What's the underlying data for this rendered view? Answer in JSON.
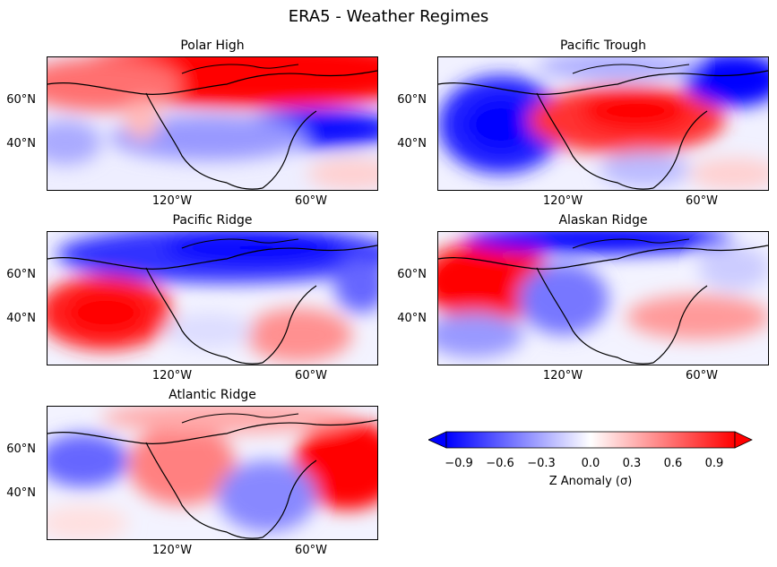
{
  "title": "ERA5 - Weather Regimes",
  "panels": [
    {
      "title": "Polar High",
      "pattern": "polar-high"
    },
    {
      "title": "Pacific Trough",
      "pattern": "pacific-trough"
    },
    {
      "title": "Pacific Ridge",
      "pattern": "pacific-ridge"
    },
    {
      "title": "Alaskan Ridge",
      "pattern": "alaskan-ridge"
    },
    {
      "title": "Atlantic Ridge",
      "pattern": "atlantic-ridge"
    }
  ],
  "axes": {
    "y_ticks": [
      "60°N",
      "40°N"
    ],
    "x_ticks": [
      "120°W",
      "60°W"
    ]
  },
  "colorbar": {
    "label": "Z Anomaly (σ)",
    "ticks": [
      "−0.9",
      "−0.6",
      "−0.3",
      "0.0",
      "0.3",
      "0.6",
      "0.9"
    ],
    "range": [
      -1.05,
      1.05
    ],
    "colormap": "bwr",
    "colors": {
      "negative": "#0000ff",
      "neutral": "#ffffff",
      "positive": "#ff0000"
    }
  }
}
